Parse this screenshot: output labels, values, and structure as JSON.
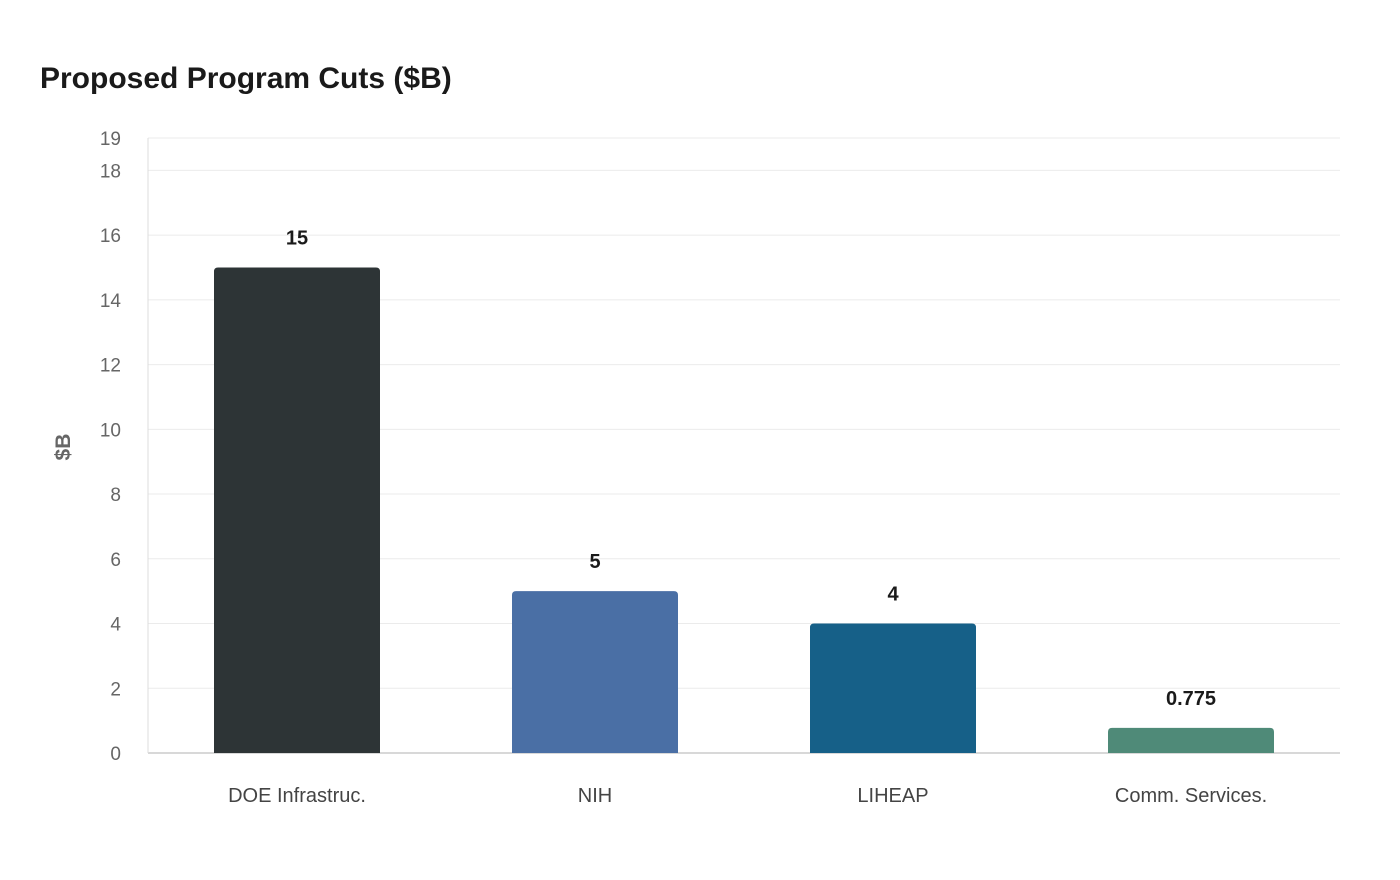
{
  "chart_data": {
    "type": "bar",
    "title": "Proposed Program Cuts ($B)",
    "xlabel": "",
    "ylabel": "$B",
    "categories": [
      "DOE Infrastruc.",
      "NIH",
      "LIHEAP",
      "Comm. Services."
    ],
    "values": [
      15,
      5,
      4,
      0.775
    ],
    "value_labels": [
      "15",
      "5",
      "4",
      "0.775"
    ],
    "colors": [
      "#2d3436",
      "#4a6fa5",
      "#166088",
      "#4f8a78"
    ],
    "ylim": [
      0,
      19
    ],
    "yticks": [
      0,
      2,
      4,
      6,
      8,
      10,
      12,
      14,
      16,
      18,
      19
    ],
    "grid": true,
    "legend": "none"
  }
}
